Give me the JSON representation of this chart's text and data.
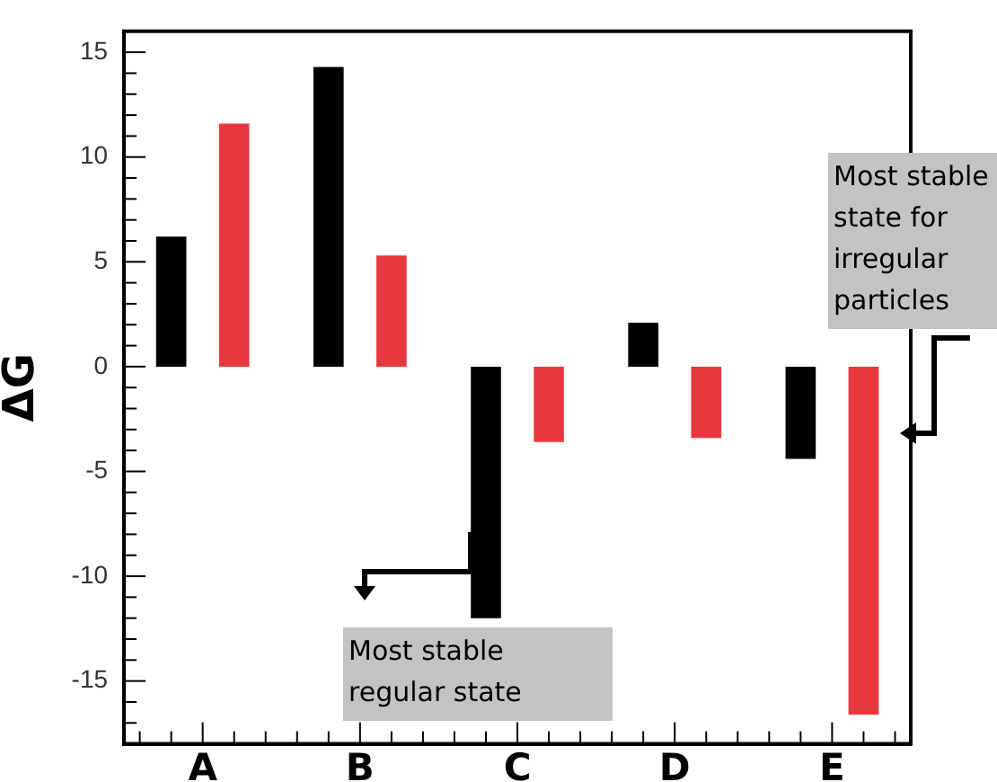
{
  "chart_data": {
    "type": "bar",
    "ylabel": "ΔG",
    "categories": [
      "A",
      "B",
      "C",
      "D",
      "E"
    ],
    "series": [
      {
        "color": "#000000",
        "values": [
          6.2,
          14.3,
          -12.0,
          2.1,
          -4.4
        ]
      },
      {
        "color": "#e8383d",
        "values": [
          11.6,
          5.3,
          -3.6,
          -3.4,
          -16.6
        ]
      }
    ],
    "ylim": [
      -18,
      16
    ],
    "yticks": [
      {
        "value": -18,
        "label": null
      },
      {
        "value": -17,
        "label": null
      },
      {
        "value": -16,
        "label": null
      },
      -15,
      {
        "value": -14,
        "label": null
      },
      {
        "value": -13,
        "label": null
      },
      {
        "value": -12,
        "label": null
      },
      {
        "value": -11,
        "label": null
      },
      -10,
      {
        "value": -9,
        "label": null
      },
      {
        "value": -8,
        "label": null
      },
      {
        "value": -7,
        "label": null
      },
      {
        "value": -6,
        "label": null
      },
      -5,
      {
        "value": -4,
        "label": null
      },
      {
        "value": -3,
        "label": null
      },
      {
        "value": -2,
        "label": null
      },
      {
        "value": -1,
        "label": null
      },
      0,
      {
        "value": 1,
        "label": null
      },
      {
        "value": 2,
        "label": null
      },
      {
        "value": 3,
        "label": null
      },
      {
        "value": 4,
        "label": null
      },
      5,
      {
        "value": 6,
        "label": null
      },
      {
        "value": 7,
        "label": null
      },
      {
        "value": 8,
        "label": null
      },
      {
        "value": 9,
        "label": null
      },
      10,
      {
        "value": 11,
        "label": null
      },
      {
        "value": 12,
        "label": null
      },
      {
        "value": 13,
        "label": null
      },
      {
        "value": 14,
        "label": null
      },
      15,
      {
        "value": 16,
        "label": null
      }
    ],
    "annotations": [
      "Most stable regular state",
      "Most stable state for irregular particles"
    ],
    "grid": false,
    "legend": false
  }
}
